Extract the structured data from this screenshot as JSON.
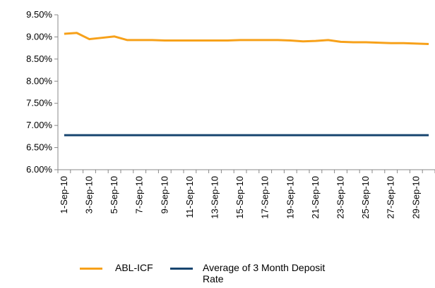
{
  "chart_data": {
    "type": "line",
    "categories": [
      "1-Sep-10",
      null,
      "3-Sep-10",
      null,
      "5-Sep-10",
      null,
      "7-Sep-10",
      null,
      "9-Sep-10",
      null,
      "11-Sep-10",
      null,
      "13-Sep-10",
      null,
      "15-Sep-10",
      null,
      "17-Sep-10",
      null,
      "19-Sep-10",
      null,
      "21-Sep-10",
      null,
      "23-Sep-10",
      null,
      "25-Sep-10",
      null,
      "27-Sep-10",
      null,
      "29-Sep-10",
      null
    ],
    "series": [
      {
        "name": "ABL-ICF",
        "color": "#f7a11a",
        "values": [
          9.07,
          9.09,
          8.95,
          8.98,
          9.01,
          8.93,
          8.93,
          8.93,
          8.92,
          8.92,
          8.92,
          8.92,
          8.92,
          8.92,
          8.93,
          8.93,
          8.93,
          8.93,
          8.92,
          8.9,
          8.91,
          8.93,
          8.89,
          8.88,
          8.88,
          8.87,
          8.86,
          8.86,
          8.85,
          8.84
        ]
      },
      {
        "name": "Average of 3 Month Deposit Rate",
        "color": "#17456f",
        "values": [
          6.78,
          6.78,
          6.78,
          6.78,
          6.78,
          6.78,
          6.78,
          6.78,
          6.78,
          6.78,
          6.78,
          6.78,
          6.78,
          6.78,
          6.78,
          6.78,
          6.78,
          6.78,
          6.78,
          6.78,
          6.78,
          6.78,
          6.78,
          6.78,
          6.78,
          6.78,
          6.78,
          6.78,
          6.78,
          6.78
        ]
      }
    ],
    "ylim": [
      6.0,
      9.5
    ],
    "yticks": [
      {
        "value": 6.0,
        "label": "6.00%"
      },
      {
        "value": 6.5,
        "label": "6.50%"
      },
      {
        "value": 7.0,
        "label": "7.00%"
      },
      {
        "value": 7.5,
        "label": "7.50%"
      },
      {
        "value": 8.0,
        "label": "8.00%"
      },
      {
        "value": 8.5,
        "label": "8.50%"
      },
      {
        "value": 9.0,
        "label": "9.00%"
      },
      {
        "value": 9.5,
        "label": "9.50%"
      }
    ],
    "grid": false
  }
}
